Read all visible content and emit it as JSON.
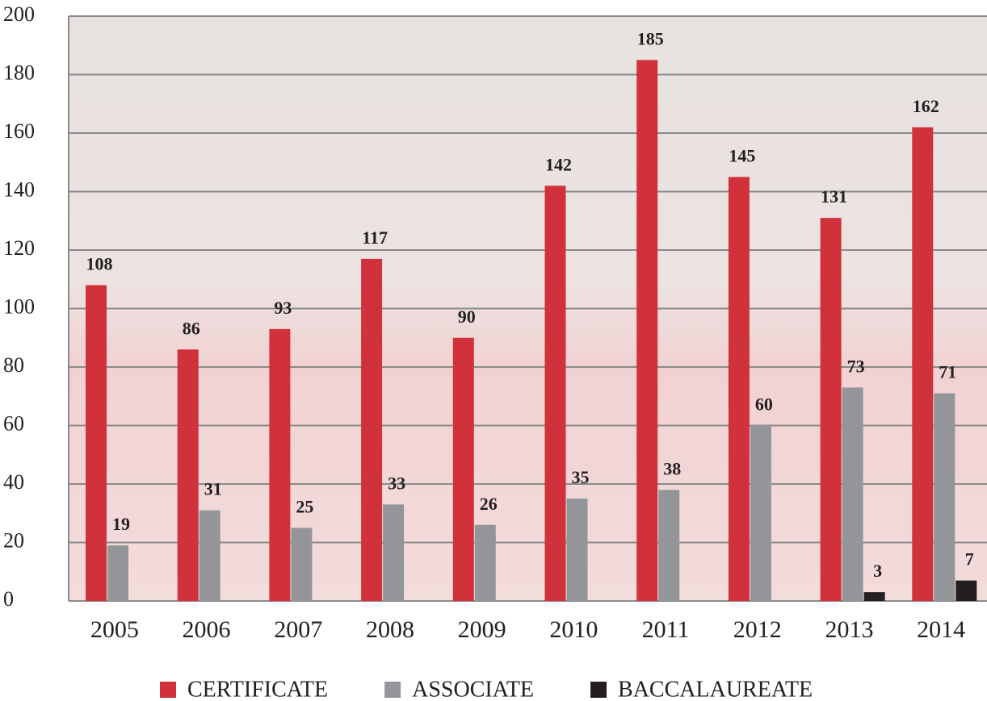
{
  "chart_data": {
    "type": "bar",
    "categories": [
      "2005",
      "2006",
      "2007",
      "2008",
      "2009",
      "2010",
      "2011",
      "2012",
      "2013",
      "2014"
    ],
    "series": [
      {
        "name": "CERTIFICATE",
        "color": "#d0313b",
        "values": [
          108,
          86,
          93,
          117,
          90,
          142,
          185,
          145,
          131,
          162
        ]
      },
      {
        "name": "ASSOCIATE",
        "color": "#939598",
        "values": [
          19,
          31,
          25,
          33,
          26,
          35,
          38,
          60,
          73,
          71
        ]
      },
      {
        "name": "BACCALAUREATE",
        "color": "#231f20",
        "values": [
          null,
          null,
          null,
          null,
          null,
          null,
          null,
          null,
          3,
          7
        ]
      }
    ],
    "ylim": [
      0,
      200
    ],
    "yticks": [
      0,
      20,
      40,
      60,
      80,
      100,
      120,
      140,
      160,
      180,
      200
    ],
    "grid": true
  }
}
